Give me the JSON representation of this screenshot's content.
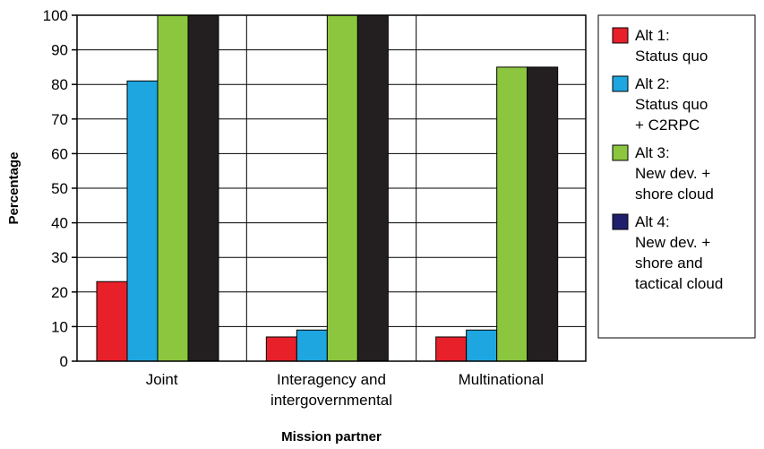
{
  "chart_data": {
    "type": "bar",
    "categories": [
      [
        "Joint"
      ],
      [
        "Interagency and",
        "intergovernmental"
      ],
      [
        "Multinational"
      ]
    ],
    "series": [
      {
        "name": [
          "Alt 1:",
          "Status quo"
        ],
        "color": "#e8202a",
        "values": [
          23,
          7,
          7
        ]
      },
      {
        "name": [
          "Alt 2:",
          "Status quo",
          "+ C2RPC"
        ],
        "color": "#1ea6e0",
        "values": [
          81,
          9,
          9
        ]
      },
      {
        "name": [
          "Alt 3:",
          "New dev. +",
          "shore cloud"
        ],
        "color": "#8cc63f",
        "values": [
          100,
          100,
          85
        ]
      },
      {
        "name": [
          "Alt 4:",
          "New dev. +",
          "shore and",
          "tactical cloud"
        ],
        "color": "#231f20",
        "legend_color": "#1f1f6b",
        "values": [
          100,
          100,
          85
        ]
      }
    ],
    "xlabel": "Mission partner",
    "ylabel": "Percentage",
    "ylim": [
      0,
      100
    ],
    "yticks": [
      0,
      10,
      20,
      30,
      40,
      50,
      60,
      70,
      80,
      90,
      100
    ],
    "grid": "horizontal",
    "legend_position": "right"
  }
}
